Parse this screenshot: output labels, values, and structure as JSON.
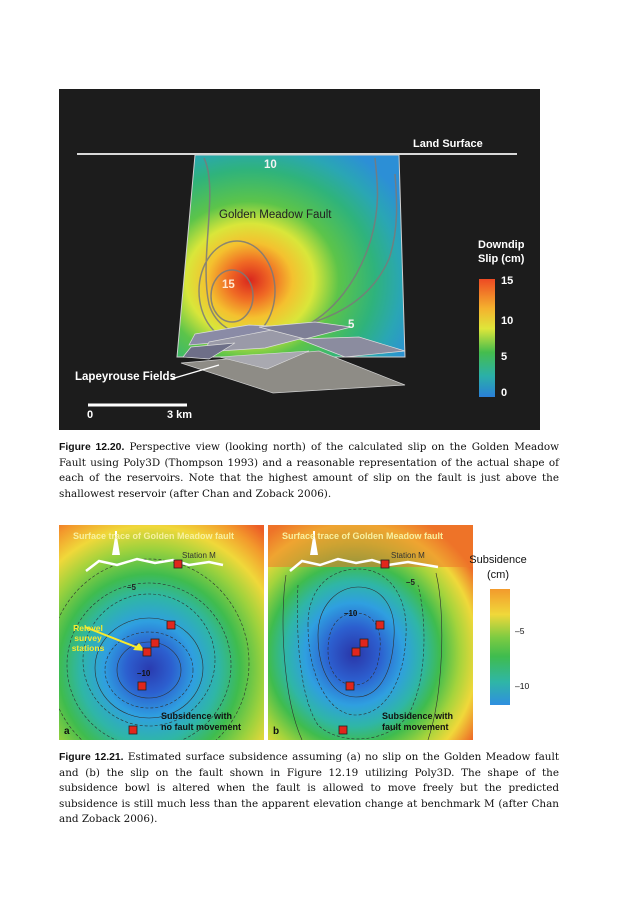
{
  "figure_1": {
    "land_surface_label": "Land Surface",
    "fault_label": "Golden Meadow Fault",
    "contour_labels": [
      "10",
      "15",
      "5"
    ],
    "field_label": "Lapeyrouse Fields",
    "scale_start": "0",
    "scale_end": "3 km",
    "colorbar_title_line1": "Downdip",
    "colorbar_title_line2": "Slip (cm)",
    "colorbar_ticks": [
      "15",
      "10",
      "5",
      "0"
    ]
  },
  "caption_1": {
    "figure_number": "Figure 12.20.",
    "text": "Perspective view (looking north) of the calculated slip on the Golden Meadow Fault using Poly3D (Thompson 1993) and a reasonable representation of the actual shape of each of the reservoirs. Note that the highest amount of slip on the fault is just above the shallowest reservoir (after Chan and Zoback 2006)."
  },
  "figure_2": {
    "panel_a": {
      "title": "Surface trace of Golden Meadow fault",
      "station_label": "Station M",
      "contour_labels": [
        "–5",
        "–10"
      ],
      "survey_label": "Relevel survey stations",
      "subtitle_line1": "Subsidence with",
      "subtitle_line2": "no fault movement",
      "panel_letter": "a"
    },
    "panel_b": {
      "title": "Surface trace of Golden Meadow fault",
      "station_label": "Station M",
      "contour_labels": [
        "–5",
        "–10"
      ],
      "subtitle_line1": "Subsidence with",
      "subtitle_line2": "fault movement",
      "panel_letter": "b"
    },
    "legend": {
      "title_line1": "Subsidence",
      "title_line2": "(cm)",
      "ticks": [
        "–5",
        "–10"
      ]
    }
  },
  "caption_2": {
    "figure_number": "Figure 12.21.",
    "text": "Estimated surface subsidence assuming (a) no slip on the Golden Meadow fault and (b) the slip on the fault shown in Figure 12.19 utilizing Poly3D. The shape of the subsidence bowl is altered when the fault is allowed to move freely but the predicted subsidence is still much less than the apparent elevation change at benchmark M (after Chan and Zoback 2006)."
  },
  "colors": {
    "high": "#e8502a",
    "mid": "#e7e63a",
    "low_mid": "#3cb94b",
    "low": "#2b7fd6",
    "deep": "#2a3bb0",
    "station_marker": "#e1261c"
  }
}
